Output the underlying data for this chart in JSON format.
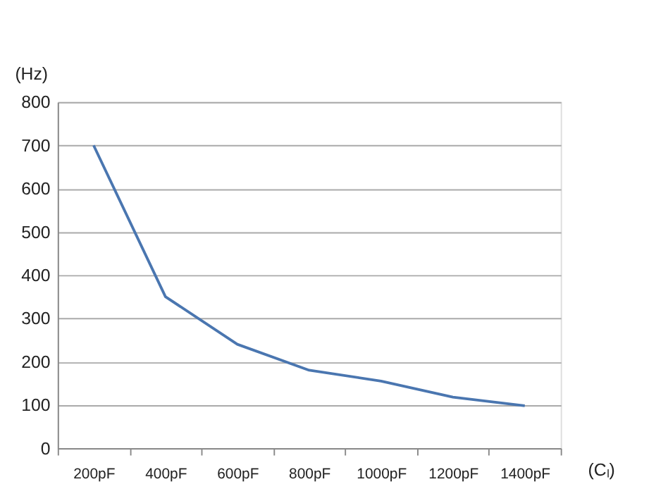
{
  "chart_data": {
    "type": "line",
    "categories": [
      "200pF",
      "400pF",
      "600pF",
      "800pF",
      "1000pF",
      "1200pF",
      "1400pF"
    ],
    "values": [
      700,
      350,
      240,
      180,
      155,
      118,
      98
    ],
    "color": "#4a76b0",
    "xlabel": "(Cₗ)",
    "ylabel": "(Hz)",
    "ylim": [
      0,
      800
    ],
    "yticks": [
      0,
      100,
      200,
      300,
      400,
      500,
      600,
      700,
      800
    ],
    "grid": "y",
    "marker": "none",
    "line_style": "solid"
  }
}
